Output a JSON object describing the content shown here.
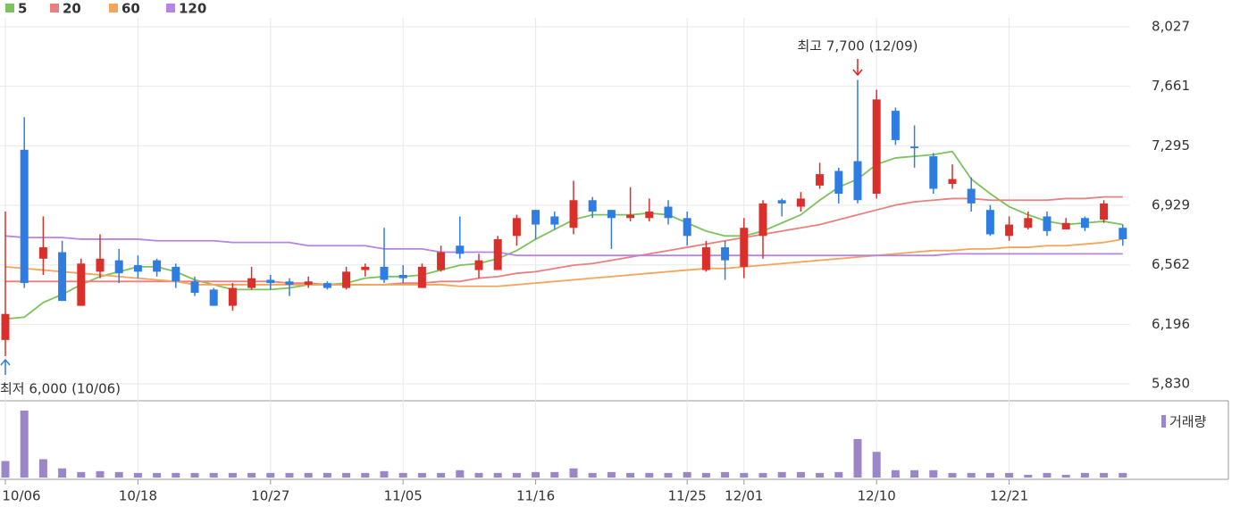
{
  "chart_data": {
    "type": "candlestick",
    "categories": [
      "10/06",
      null,
      null,
      null,
      null,
      null,
      null,
      "10/18",
      null,
      null,
      null,
      null,
      null,
      null,
      "10/27",
      null,
      null,
      null,
      null,
      null,
      null,
      "11/05",
      null,
      null,
      null,
      null,
      null,
      null,
      "11/16",
      null,
      null,
      null,
      null,
      null,
      null,
      null,
      "11/25",
      null,
      null,
      "12/01",
      null,
      null,
      null,
      null,
      null,
      null,
      "12/10",
      null,
      null,
      null,
      null,
      null,
      null,
      "12/21",
      null,
      null,
      null,
      null,
      null,
      null
    ],
    "open": [
      6100,
      7270,
      6600,
      6640,
      6310,
      6520,
      6590,
      6560,
      6590,
      6550,
      6460,
      6410,
      6310,
      6420,
      6470,
      6460,
      6440,
      6450,
      6420,
      6530,
      6550,
      6500,
      6420,
      6530,
      6680,
      6530,
      6530,
      6740,
      6900,
      6860,
      6790,
      6960,
      6900,
      6850,
      6850,
      6920,
      6850,
      6530,
      6670,
      6550,
      6740,
      6960,
      6920,
      7050,
      7140,
      7200,
      7000,
      7510,
      7290,
      7230,
      7060,
      7030,
      6900,
      6740,
      6790,
      6860,
      6780,
      6850,
      6840,
      6790
    ],
    "high": [
      6890,
      7470,
      6860,
      6710,
      6600,
      6750,
      6660,
      6620,
      6600,
      6570,
      6490,
      6420,
      6450,
      6550,
      6500,
      6480,
      6490,
      6460,
      6550,
      6570,
      6790,
      6560,
      6570,
      6680,
      6860,
      6630,
      6740,
      6870,
      6900,
      6890,
      7080,
      6980,
      6900,
      7040,
      6970,
      6960,
      6890,
      6710,
      6710,
      6850,
      6960,
      6970,
      7010,
      7190,
      7160,
      7700,
      7640,
      7530,
      7420,
      7250,
      7180,
      7100,
      6930,
      6860,
      6890,
      6890,
      6850,
      6860,
      6960,
      6810
    ],
    "low": [
      6000,
      6420,
      6500,
      6340,
      6310,
      6480,
      6450,
      6480,
      6490,
      6420,
      6370,
      6310,
      6280,
      6410,
      6410,
      6370,
      6420,
      6410,
      6410,
      6490,
      6450,
      6450,
      6420,
      6520,
      6600,
      6480,
      6530,
      6680,
      6720,
      6780,
      6750,
      6850,
      6660,
      6830,
      6830,
      6810,
      6680,
      6520,
      6470,
      6480,
      6600,
      6860,
      6890,
      7030,
      6940,
      6940,
      6970,
      7300,
      7160,
      7000,
      7030,
      6890,
      6740,
      6710,
      6780,
      6740,
      6780,
      6770,
      6820,
      6680
    ],
    "close": [
      6260,
      6450,
      6670,
      6340,
      6570,
      6600,
      6510,
      6520,
      6520,
      6460,
      6390,
      6310,
      6420,
      6480,
      6450,
      6440,
      6460,
      6420,
      6520,
      6550,
      6470,
      6480,
      6550,
      6640,
      6630,
      6590,
      6720,
      6850,
      6810,
      6810,
      6960,
      6890,
      6850,
      6870,
      6890,
      6850,
      6740,
      6670,
      6590,
      6790,
      6940,
      6940,
      6970,
      7120,
      7000,
      6960,
      7580,
      7330,
      7280,
      7030,
      7090,
      6940,
      6750,
      6810,
      6850,
      6770,
      6820,
      6790,
      6940,
      6720
    ],
    "up_color": "#d9302c",
    "down_color": "#2f7de1",
    "ylim": [
      5830,
      8027
    ],
    "yticks": [
      {
        "value": 5830,
        "label": "5,830"
      },
      {
        "value": 6196,
        "label": "6,196"
      },
      {
        "value": 6562,
        "label": "6,562"
      },
      {
        "value": 6929,
        "label": "6,929"
      },
      {
        "value": 7295,
        "label": "7,295"
      },
      {
        "value": 7661,
        "label": "7,661"
      },
      {
        "value": 8027,
        "label": "8,027"
      }
    ],
    "grid": true,
    "series": [
      {
        "name": "5",
        "color": "#7cc35d",
        "values": [
          6230,
          6240,
          6330,
          6380,
          6440,
          6490,
          6520,
          6550,
          6550,
          6520,
          6470,
          6440,
          6410,
          6410,
          6410,
          6420,
          6440,
          6440,
          6450,
          6480,
          6490,
          6490,
          6500,
          6530,
          6560,
          6570,
          6600,
          6650,
          6720,
          6780,
          6840,
          6870,
          6870,
          6870,
          6880,
          6870,
          6820,
          6770,
          6740,
          6740,
          6770,
          6820,
          6870,
          6960,
          7040,
          7090,
          7180,
          7220,
          7230,
          7240,
          7260,
          7090,
          7000,
          6920,
          6870,
          6830,
          6810,
          6820,
          6830,
          6810
        ]
      },
      {
        "name": "20",
        "color": "#e88080",
        "values": [
          6460,
          6460,
          6460,
          6460,
          6460,
          6460,
          6460,
          6460,
          6460,
          6460,
          6460,
          6460,
          6460,
          6460,
          6460,
          6450,
          6450,
          6440,
          6440,
          6440,
          6440,
          6450,
          6450,
          6460,
          6460,
          6480,
          6490,
          6510,
          6520,
          6540,
          6560,
          6570,
          6590,
          6610,
          6630,
          6650,
          6670,
          6690,
          6710,
          6730,
          6750,
          6770,
          6790,
          6810,
          6840,
          6870,
          6900,
          6930,
          6950,
          6960,
          6970,
          6970,
          6960,
          6960,
          6960,
          6960,
          6970,
          6970,
          6980,
          6980
        ]
      },
      {
        "name": "60",
        "color": "#f3a55a",
        "values": [
          6550,
          6540,
          6530,
          6520,
          6510,
          6500,
          6490,
          6480,
          6470,
          6460,
          6440,
          6440,
          6440,
          6440,
          6440,
          6440,
          6440,
          6440,
          6440,
          6440,
          6440,
          6440,
          6440,
          6440,
          6430,
          6430,
          6430,
          6440,
          6450,
          6460,
          6470,
          6480,
          6490,
          6500,
          6510,
          6520,
          6530,
          6540,
          6540,
          6550,
          6560,
          6570,
          6580,
          6590,
          6600,
          6610,
          6620,
          6630,
          6640,
          6650,
          6650,
          6660,
          6660,
          6670,
          6670,
          6680,
          6680,
          6690,
          6700,
          6720
        ]
      },
      {
        "name": "120",
        "color": "#b684e6",
        "values": [
          6740,
          6730,
          6730,
          6730,
          6720,
          6720,
          6720,
          6720,
          6710,
          6710,
          6710,
          6710,
          6700,
          6700,
          6700,
          6700,
          6680,
          6680,
          6680,
          6680,
          6660,
          6660,
          6660,
          6640,
          6640,
          6640,
          6640,
          6620,
          6620,
          6620,
          6620,
          6620,
          6620,
          6620,
          6620,
          6620,
          6620,
          6620,
          6620,
          6620,
          6620,
          6620,
          6620,
          6620,
          6620,
          6620,
          6620,
          6620,
          6620,
          6620,
          6630,
          6630,
          6630,
          6630,
          6630,
          6630,
          6630,
          6630,
          6630,
          6630
        ]
      }
    ],
    "annotations": [
      "최고 7,700 (12/09)",
      "최저 6,000 (10/06)"
    ],
    "volume": {
      "label": "거래량",
      "color": "#9b87c7",
      "values": [
        18,
        73,
        20,
        10,
        6,
        7,
        6,
        5,
        5,
        5,
        5,
        5,
        5,
        5,
        5,
        5,
        5,
        5,
        5,
        5,
        7,
        5,
        5,
        5,
        8,
        5,
        5,
        5,
        6,
        6,
        10,
        5,
        6,
        5,
        5,
        5,
        6,
        5,
        6,
        5,
        5,
        6,
        6,
        5,
        6,
        42,
        28,
        8,
        8,
        8,
        5,
        5,
        5,
        5,
        3,
        5,
        3,
        5,
        5,
        5
      ]
    }
  }
}
